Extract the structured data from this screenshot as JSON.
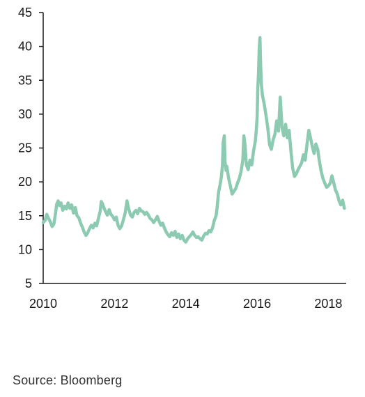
{
  "chart_data": {
    "type": "line",
    "title": "",
    "xlabel": "",
    "ylabel": "",
    "xlim": [
      2010.0,
      2018.5
    ],
    "ylim": [
      5,
      45
    ],
    "x_ticks": [
      "2010",
      "2012",
      "2014",
      "2016",
      "2018"
    ],
    "y_ticks": [
      "5",
      "10",
      "15",
      "20",
      "25",
      "30",
      "35",
      "40",
      "45"
    ],
    "grid": false,
    "legend": "none",
    "line_color": "#8ccbb2",
    "series": [
      {
        "x": [
          2010.0,
          2010.05,
          2010.1,
          2010.15,
          2010.2,
          2010.25,
          2010.3,
          2010.35,
          2010.38,
          2010.42,
          2010.46,
          2010.5,
          2010.55,
          2010.6,
          2010.65,
          2010.7,
          2010.75,
          2010.8,
          2010.85,
          2010.9,
          2010.95,
          2011.0,
          2011.05,
          2011.1,
          2011.15,
          2011.2,
          2011.25,
          2011.3,
          2011.35,
          2011.4,
          2011.45,
          2011.5,
          2011.55,
          2011.6,
          2011.63,
          2011.66,
          2011.7,
          2011.75,
          2011.8,
          2011.85,
          2011.9,
          2011.95,
          2012.0,
          2012.05,
          2012.1,
          2012.15,
          2012.2,
          2012.25,
          2012.3,
          2012.35,
          2012.4,
          2012.45,
          2012.5,
          2012.55,
          2012.6,
          2012.65,
          2012.7,
          2012.75,
          2012.8,
          2012.85,
          2012.9,
          2012.95,
          2013.0,
          2013.05,
          2013.1,
          2013.15,
          2013.2,
          2013.25,
          2013.3,
          2013.35,
          2013.4,
          2013.45,
          2013.5,
          2013.55,
          2013.6,
          2013.65,
          2013.7,
          2013.75,
          2013.8,
          2013.85,
          2013.9,
          2013.95,
          2014.0,
          2014.05,
          2014.1,
          2014.15,
          2014.2,
          2014.25,
          2014.3,
          2014.35,
          2014.4,
          2014.45,
          2014.5,
          2014.55,
          2014.6,
          2014.65,
          2014.7,
          2014.75,
          2014.8,
          2014.85,
          2014.88,
          2014.92,
          2014.96,
          2015.0,
          2015.03,
          2015.05,
          2015.08,
          2015.1,
          2015.13,
          2015.15,
          2015.2,
          2015.25,
          2015.3,
          2015.35,
          2015.4,
          2015.45,
          2015.5,
          2015.55,
          2015.6,
          2015.63,
          2015.66,
          2015.7,
          2015.75,
          2015.8,
          2015.85,
          2015.9,
          2015.95,
          2015.98,
          2016.0,
          2016.02,
          2016.04,
          2016.06,
          2016.08,
          2016.1,
          2016.12,
          2016.15,
          2016.2,
          2016.25,
          2016.3,
          2016.35,
          2016.4,
          2016.45,
          2016.5,
          2016.55,
          2016.6,
          2016.65,
          2016.7,
          2016.75,
          2016.8,
          2016.85,
          2016.9,
          2016.95,
          2017.0,
          2017.05,
          2017.1,
          2017.15,
          2017.2,
          2017.25,
          2017.3,
          2017.35,
          2017.4,
          2017.45,
          2017.5,
          2017.55,
          2017.6,
          2017.65,
          2017.7,
          2017.75,
          2017.8,
          2017.85,
          2017.9,
          2017.95,
          2018.0,
          2018.05,
          2018.1,
          2018.15,
          2018.2,
          2018.25,
          2018.3,
          2018.35,
          2018.4,
          2018.45
        ],
        "values": [
          14.0,
          14.3,
          15.2,
          14.6,
          14.1,
          13.4,
          13.8,
          15.5,
          16.7,
          17.2,
          16.5,
          16.9,
          15.8,
          16.4,
          16.0,
          16.9,
          16.1,
          16.6,
          15.4,
          16.2,
          15.0,
          14.7,
          13.9,
          13.3,
          12.6,
          12.1,
          12.5,
          13.1,
          13.6,
          13.2,
          13.9,
          13.5,
          14.6,
          15.7,
          17.1,
          16.8,
          16.2,
          15.6,
          15.1,
          15.9,
          15.2,
          14.9,
          14.4,
          14.8,
          13.6,
          13.1,
          13.5,
          14.4,
          15.4,
          17.2,
          16.0,
          15.1,
          14.8,
          15.5,
          15.8,
          15.3,
          16.1,
          15.7,
          15.6,
          15.2,
          15.5,
          15.1,
          14.6,
          14.4,
          14.0,
          14.4,
          14.9,
          14.2,
          13.6,
          13.9,
          13.2,
          12.6,
          12.2,
          11.9,
          12.5,
          12.1,
          12.7,
          11.8,
          12.3,
          11.6,
          12.1,
          11.4,
          11.1,
          11.6,
          11.9,
          12.2,
          12.6,
          12.1,
          11.8,
          11.9,
          11.6,
          11.4,
          12.0,
          12.4,
          12.3,
          12.8,
          12.6,
          13.2,
          14.3,
          15.0,
          16.2,
          18.5,
          19.5,
          20.8,
          22.5,
          25.8,
          26.8,
          23.0,
          21.7,
          22.3,
          20.6,
          19.4,
          18.2,
          18.6,
          19.0,
          19.8,
          20.5,
          21.5,
          23.2,
          26.8,
          25.5,
          22.5,
          21.8,
          23.2,
          22.5,
          24.5,
          26.0,
          27.7,
          29.5,
          33.8,
          36.0,
          39.5,
          41.3,
          37.2,
          34.5,
          32.8,
          31.5,
          29.8,
          28.0,
          25.5,
          24.8,
          26.2,
          27.0,
          29.0,
          27.5,
          32.5,
          28.0,
          26.8,
          28.5,
          26.5,
          27.6,
          24.5,
          22.0,
          20.8,
          21.2,
          21.8,
          22.3,
          22.8,
          24.0,
          23.2,
          25.5,
          27.6,
          26.5,
          25.2,
          24.2,
          25.6,
          24.8,
          23.0,
          21.5,
          20.5,
          19.8,
          19.2,
          19.4,
          19.8,
          20.9,
          19.9,
          18.8,
          18.2,
          17.2,
          16.6,
          17.3,
          16.1
        ]
      }
    ]
  },
  "footer": {
    "source": "Source: Bloomberg"
  }
}
